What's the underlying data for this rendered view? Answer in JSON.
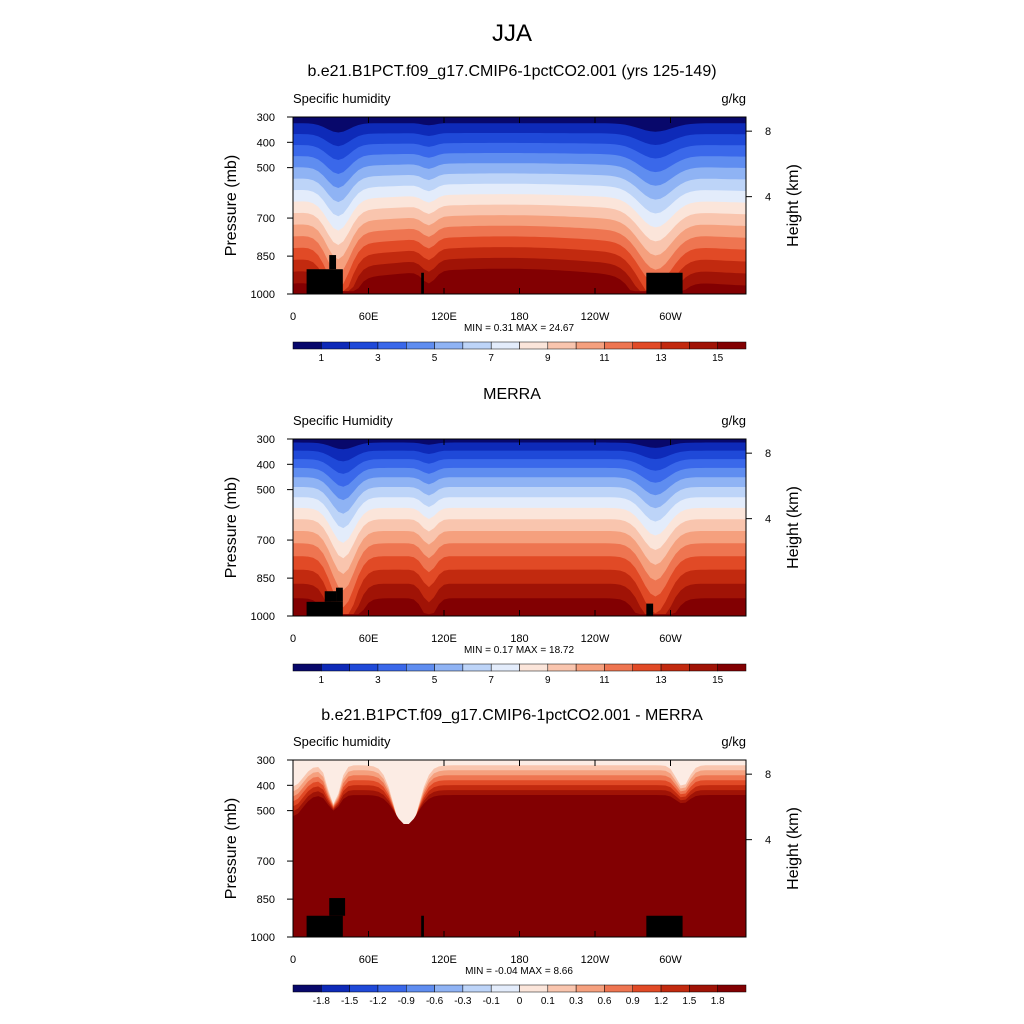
{
  "figure_title": "JJA",
  "chart_data": [
    {
      "type": "contour",
      "title": "b.e21.B1PCT.f09_g17.CMIP6-1pctCO2.001 (yrs 125-149)",
      "left_label": "Specific humidity",
      "right_label": "g/kg",
      "ylabel": "Pressure (mb)",
      "y2label": "Height (km)",
      "pressure_ticks": [
        "300",
        "400",
        "500",
        "700",
        "850",
        "1000"
      ],
      "height_ticks": [
        "8",
        "4"
      ],
      "lon_ticks": [
        "0",
        "60E",
        "120E",
        "180",
        "120W",
        "60W"
      ],
      "min_max_text": "MIN =   0.31  MAX =  24.67",
      "colorbar_labels": [
        "1",
        "3",
        "5",
        "7",
        "9",
        "11",
        "13",
        "15"
      ],
      "colorbar_label_every": 2,
      "colorbar_label_offset": 1
    },
    {
      "type": "contour",
      "title": "MERRA",
      "left_label": "Specific Humidity",
      "right_label": "g/kg",
      "ylabel": "Pressure (mb)",
      "y2label": "Height (km)",
      "pressure_ticks": [
        "300",
        "400",
        "500",
        "700",
        "850",
        "1000"
      ],
      "height_ticks": [
        "8",
        "4"
      ],
      "lon_ticks": [
        "0",
        "60E",
        "120E",
        "180",
        "120W",
        "60W"
      ],
      "min_max_text": "MIN =   0.17  MAX =  18.72",
      "colorbar_labels": [
        "1",
        "3",
        "5",
        "7",
        "9",
        "11",
        "13",
        "15"
      ],
      "colorbar_label_every": 2,
      "colorbar_label_offset": 1
    },
    {
      "type": "contour",
      "title": "b.e21.B1PCT.f09_g17.CMIP6-1pctCO2.001 - MERRA",
      "left_label": "Specific humidity",
      "right_label": "g/kg",
      "ylabel": "Pressure (mb)",
      "y2label": "Height (km)",
      "pressure_ticks": [
        "300",
        "400",
        "500",
        "700",
        "850",
        "1000"
      ],
      "height_ticks": [
        "8",
        "4"
      ],
      "lon_ticks": [
        "0",
        "60E",
        "120E",
        "180",
        "120W",
        "60W"
      ],
      "min_max_text": "MIN =  -0.04  MAX =   8.66",
      "colorbar_labels": [
        "-1.8",
        "-1.5",
        "-1.2",
        "-0.9",
        "-0.6",
        "-0.3",
        "-0.1",
        "0",
        "0.1",
        "0.3",
        "0.6",
        "0.9",
        "1.2",
        "1.5",
        "1.8"
      ],
      "colorbar_label_every": 1,
      "colorbar_label_offset": 1
    }
  ],
  "colormap": [
    "#08086b",
    "#0e2ab8",
    "#1f49d8",
    "#3a68ea",
    "#5f8df0",
    "#8fb3f4",
    "#bdd4f8",
    "#e3ecfb",
    "#fbe5da",
    "#f9c5ae",
    "#f5a07e",
    "#ee7551",
    "#e14a26",
    "#c22a0f",
    "#a01306",
    "#820002"
  ]
}
